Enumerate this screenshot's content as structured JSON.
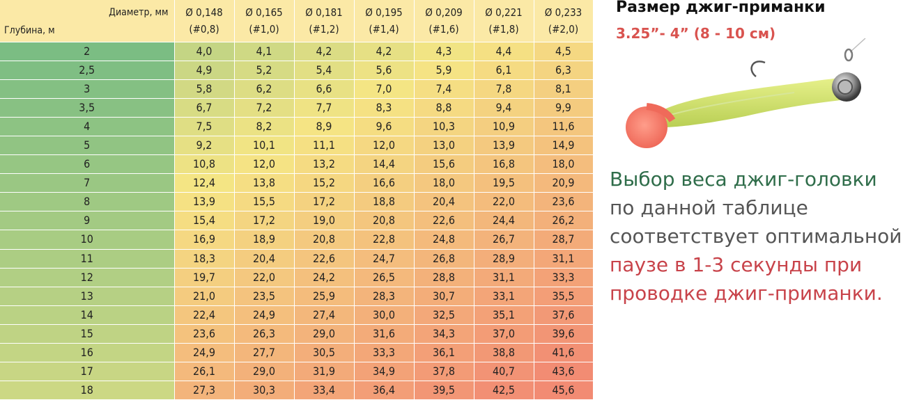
{
  "table": {
    "header_diameter": "Диаметр, мм",
    "header_depth": "Глубина, м",
    "columns": [
      {
        "diameter": "Ø 0,148",
        "pe": "(#0,8)"
      },
      {
        "diameter": "Ø 0,165",
        "pe": "(#1,0)"
      },
      {
        "diameter": "Ø 0,181",
        "pe": "(#1,2)"
      },
      {
        "diameter": "Ø 0,195",
        "pe": "(#1,4)"
      },
      {
        "diameter": "Ø 0,209",
        "pe": "(#1,6)"
      },
      {
        "diameter": "Ø 0,221",
        "pe": "(#1,8)"
      },
      {
        "diameter": "Ø 0,233",
        "pe": "(#2,0)"
      }
    ],
    "rows": [
      {
        "depth": "2",
        "values": [
          "4,0",
          "4,1",
          "4,2",
          "4,2",
          "4,3",
          "4,4",
          "4,5"
        ]
      },
      {
        "depth": "2,5",
        "values": [
          "4,9",
          "5,2",
          "5,4",
          "5,6",
          "5,9",
          "6,1",
          "6,3"
        ]
      },
      {
        "depth": "3",
        "values": [
          "5,8",
          "6,2",
          "6,6",
          "7,0",
          "7,4",
          "7,8",
          "8,1"
        ]
      },
      {
        "depth": "3,5",
        "values": [
          "6,7",
          "7,2",
          "7,7",
          "8,3",
          "8,8",
          "9,4",
          "9,9"
        ]
      },
      {
        "depth": "4",
        "values": [
          "7,5",
          "8,2",
          "8,9",
          "9,6",
          "10,3",
          "10,9",
          "11,6"
        ]
      },
      {
        "depth": "5",
        "values": [
          "9,2",
          "10,1",
          "11,1",
          "12,0",
          "13,0",
          "13,9",
          "14,9"
        ]
      },
      {
        "depth": "6",
        "values": [
          "10,8",
          "12,0",
          "13,2",
          "14,4",
          "15,6",
          "16,8",
          "18,0"
        ]
      },
      {
        "depth": "7",
        "values": [
          "12,4",
          "13,8",
          "15,2",
          "16,6",
          "18,0",
          "19,5",
          "20,9"
        ]
      },
      {
        "depth": "8",
        "values": [
          "13,9",
          "15,5",
          "17,2",
          "18,8",
          "20,4",
          "22,0",
          "23,6"
        ]
      },
      {
        "depth": "9",
        "values": [
          "15,4",
          "17,2",
          "19,0",
          "20,8",
          "22,6",
          "24,4",
          "26,2"
        ]
      },
      {
        "depth": "10",
        "values": [
          "16,9",
          "18,9",
          "20,8",
          "22,8",
          "24,8",
          "26,7",
          "28,7"
        ]
      },
      {
        "depth": "11",
        "values": [
          "18,3",
          "20,4",
          "22,6",
          "24,7",
          "26,8",
          "28,9",
          "31,1"
        ]
      },
      {
        "depth": "12",
        "values": [
          "19,7",
          "22,0",
          "24,2",
          "26,5",
          "28,8",
          "31,1",
          "33,3"
        ]
      },
      {
        "depth": "13",
        "values": [
          "21,0",
          "23,5",
          "25,9",
          "28,3",
          "30,7",
          "33,1",
          "35,5"
        ]
      },
      {
        "depth": "14",
        "values": [
          "22,4",
          "24,9",
          "27,4",
          "30,0",
          "32,5",
          "35,1",
          "37,6"
        ]
      },
      {
        "depth": "15",
        "values": [
          "23,6",
          "26,3",
          "29,0",
          "31,6",
          "34,3",
          "37,0",
          "39,6"
        ]
      },
      {
        "depth": "16",
        "values": [
          "24,9",
          "27,7",
          "30,5",
          "33,3",
          "36,1",
          "38,8",
          "41,6"
        ]
      },
      {
        "depth": "17",
        "values": [
          "26,1",
          "29,0",
          "31,9",
          "34,9",
          "37,8",
          "40,7",
          "43,6"
        ]
      },
      {
        "depth": "18",
        "values": [
          "27,3",
          "30,3",
          "33,4",
          "36,4",
          "39,5",
          "42,5",
          "45,6"
        ]
      }
    ]
  },
  "colors": {
    "header_bg": "#fbe9a6",
    "scale_green": "#6db883",
    "scale_yellow": "#f5e584",
    "scale_red": "#f28b73",
    "accent_red": "#d9534f",
    "text_green": "#2f6d4a"
  },
  "lure": {
    "title": "Размер джиг-приманки",
    "size": "3.25”- 4” (8 - 10 см)",
    "icon": "jig-lure-illustration"
  },
  "description": {
    "line1": "Выбор веса джиг-головки",
    "line2": "по данной таблице",
    "line3": "соответствует оптимальной",
    "line4": "паузе в 1-3 секунды при",
    "line5": "проводке джиг-приманки."
  }
}
